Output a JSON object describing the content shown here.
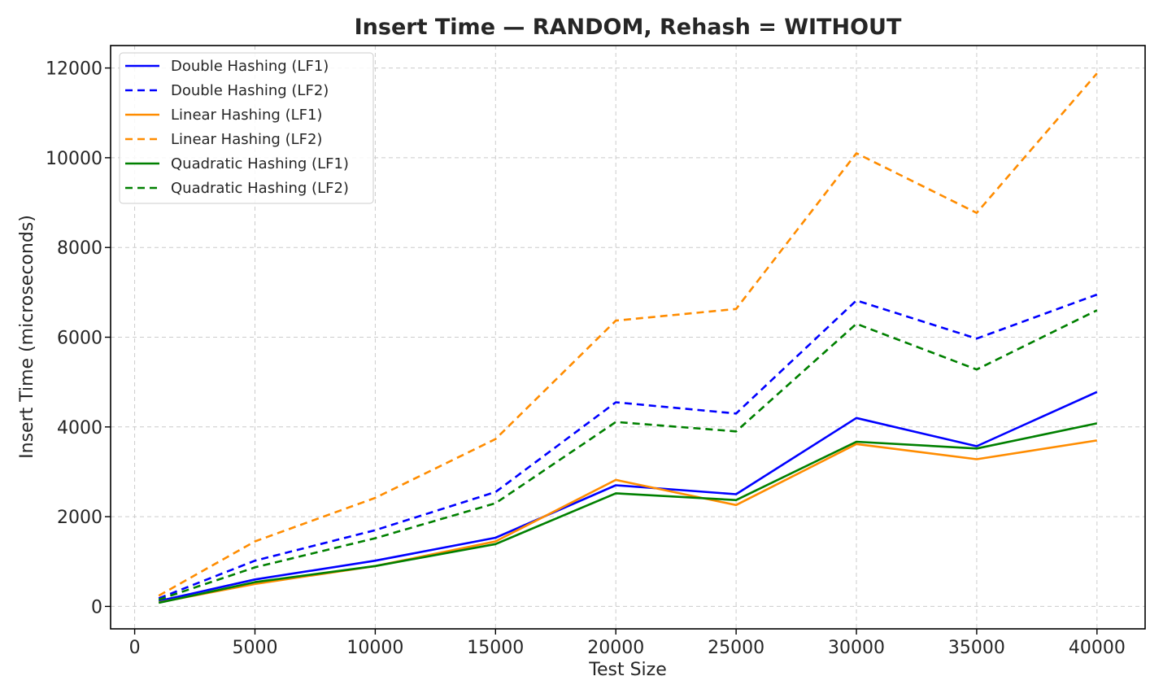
{
  "chart_data": {
    "type": "line",
    "title": "Insert Time — RANDOM, Rehash = WITHOUT",
    "xlabel": "Test Size",
    "ylabel": "Insert Time (microseconds)",
    "xlim": [
      -1000,
      42000
    ],
    "ylim": [
      -500,
      12500
    ],
    "xticks": [
      0,
      5000,
      10000,
      15000,
      20000,
      25000,
      30000,
      35000,
      40000
    ],
    "yticks": [
      0,
      2000,
      4000,
      6000,
      8000,
      10000,
      12000
    ],
    "grid": true,
    "legend_position": "top-left",
    "x": [
      1000,
      5000,
      10000,
      15000,
      20000,
      25000,
      30000,
      35000,
      40000
    ],
    "series": [
      {
        "name": "Double Hashing (LF1)",
        "color": "#0000ff",
        "dashed": false,
        "values": [
          120,
          600,
          1020,
          1530,
          2700,
          2500,
          4200,
          3570,
          4780
        ]
      },
      {
        "name": "Double Hashing (LF2)",
        "color": "#0000ff",
        "dashed": true,
        "values": [
          180,
          1020,
          1700,
          2550,
          4550,
          4300,
          6820,
          5970,
          6950
        ]
      },
      {
        "name": "Linear Hashing (LF1)",
        "color": "#ff8c00",
        "dashed": false,
        "values": [
          90,
          500,
          900,
          1450,
          2820,
          2260,
          3620,
          3280,
          3700
        ]
      },
      {
        "name": "Linear Hashing (LF2)",
        "color": "#ff8c00",
        "dashed": true,
        "values": [
          240,
          1450,
          2420,
          3730,
          6370,
          6630,
          10100,
          8770,
          11880
        ]
      },
      {
        "name": "Quadratic Hashing (LF1)",
        "color": "#008000",
        "dashed": false,
        "values": [
          80,
          540,
          900,
          1390,
          2520,
          2370,
          3670,
          3520,
          4080
        ]
      },
      {
        "name": "Quadratic Hashing (LF2)",
        "color": "#008000",
        "dashed": true,
        "values": [
          150,
          870,
          1520,
          2300,
          4110,
          3900,
          6300,
          5280,
          6600
        ]
      }
    ]
  }
}
